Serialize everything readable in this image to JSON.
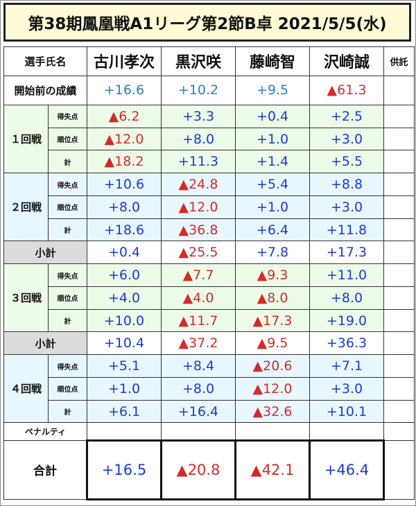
{
  "title": "第38期鳳凰戦A1リーグ第2節B卓 2021/5/5(水)",
  "header": {
    "label": "選手氏名",
    "kyo": "供託"
  },
  "players": [
    "古川孝次",
    "黒沢咲",
    "藤崎智",
    "沢崎誠"
  ],
  "pre": {
    "label": "開始前の成績",
    "values": [
      "+16.6",
      "+10.2",
      "+9.5",
      "▲61.3"
    ]
  },
  "sublabels": {
    "tokushitsu": "得失点",
    "juni": "順位点",
    "kei": "計"
  },
  "rounds": [
    {
      "label": "１回戦",
      "tokushitsu": [
        "▲6.2",
        "+3.3",
        "+0.4",
        "+2.5"
      ],
      "juni": [
        "▲12.0",
        "+8.0",
        "+1.0",
        "+3.0"
      ],
      "kei": [
        "▲18.2",
        "+11.3",
        "+1.4",
        "+5.5"
      ]
    },
    {
      "label": "２回戦",
      "tokushitsu": [
        "+10.6",
        "▲24.8",
        "+5.4",
        "+8.8"
      ],
      "juni": [
        "+8.0",
        "▲12.0",
        "+1.0",
        "+3.0"
      ],
      "kei": [
        "+18.6",
        "▲36.8",
        "+6.4",
        "+11.8"
      ]
    },
    {
      "label": "３回戦",
      "tokushitsu": [
        "+6.0",
        "▲7.7",
        "▲9.3",
        "+11.0"
      ],
      "juni": [
        "+4.0",
        "▲4.0",
        "▲8.0",
        "+8.0"
      ],
      "kei": [
        "+10.0",
        "▲11.7",
        "▲17.3",
        "+19.0"
      ]
    },
    {
      "label": "４回戦",
      "tokushitsu": [
        "+5.1",
        "+8.4",
        "▲20.6",
        "+7.1"
      ],
      "juni": [
        "+1.0",
        "+8.0",
        "▲12.0",
        "+3.0"
      ],
      "kei": [
        "+6.1",
        "+16.4",
        "▲32.6",
        "+10.1"
      ]
    }
  ],
  "subtotals": [
    {
      "label": "小計",
      "values": [
        "+0.4",
        "▲25.5",
        "+7.8",
        "+17.3"
      ]
    },
    {
      "label": "小計",
      "values": [
        "+10.4",
        "▲37.2",
        "▲9.5",
        "+36.3"
      ]
    }
  ],
  "penalty": {
    "label": "ペナルティ"
  },
  "total": {
    "label": "合計",
    "values": [
      "+16.5",
      "▲20.8",
      "▲42.1",
      "+46.4"
    ]
  },
  "colors": {
    "positive": "#1a3bd6",
    "negative": "#d42a2a",
    "pre_positive": "#2a7fc0",
    "title_bg": "#fffbd6",
    "round_green": "#ecfbe7",
    "round_blue": "#e8f6fd",
    "subtotal_label_bg": "#dcdcdc"
  }
}
